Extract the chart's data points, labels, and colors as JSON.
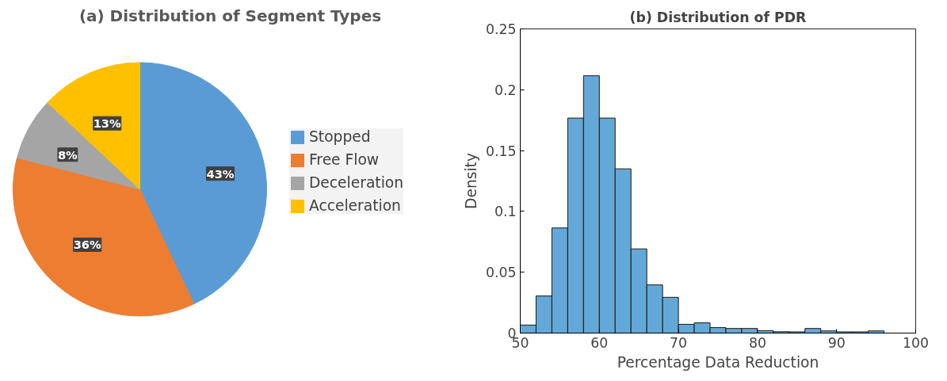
{
  "chart_data": [
    {
      "type": "pie",
      "title": "(a) Distribution of Segment Types",
      "categories": [
        "Stopped",
        "Free Flow",
        "Deceleration",
        "Acceleration"
      ],
      "values": [
        43,
        36,
        8,
        13
      ],
      "colors": [
        "#5b9bd5",
        "#ed7d31",
        "#a5a5a5",
        "#ffc000"
      ],
      "value_labels": [
        "43%",
        "36%",
        "8%",
        "13%"
      ],
      "legend": "right"
    },
    {
      "type": "histogram",
      "title": "(b) Distribution of PDR",
      "xlabel": "Percentage Data Reduction",
      "ylabel": "Density",
      "bins": [
        50,
        52,
        54,
        56,
        58,
        60,
        62,
        64,
        66,
        68,
        70,
        72,
        74,
        76,
        78,
        80,
        82,
        84,
        86,
        88,
        90,
        92,
        94,
        96
      ],
      "values": [
        0.0066,
        0.0305,
        0.0864,
        0.1767,
        0.2115,
        0.1767,
        0.135,
        0.0692,
        0.0396,
        0.0294,
        0.0072,
        0.0084,
        0.0045,
        0.0038,
        0.0038,
        0.002,
        0.0011,
        0.001,
        0.0038,
        0.0018,
        0.001,
        0.001,
        0.0018
      ],
      "color": "#64a8d8",
      "xlim": [
        50,
        100
      ],
      "xticks": [
        50,
        60,
        70,
        80,
        90,
        100
      ],
      "ylim": [
        0,
        0.25
      ],
      "yticks": [
        0,
        0.05,
        0.1,
        0.15,
        0.2,
        0.25
      ],
      "grid": false
    }
  ]
}
